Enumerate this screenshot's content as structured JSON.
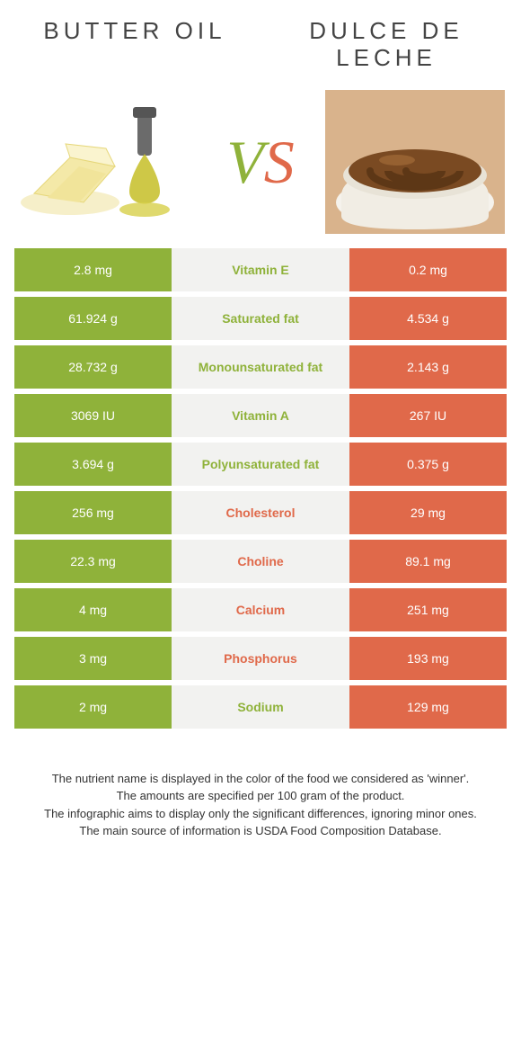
{
  "colors": {
    "green": "#8fb23a",
    "orange": "#e0694a",
    "mid_bg": "#f2f2f0",
    "page_bg": "#ffffff"
  },
  "left": {
    "title": "BUTTER OIL"
  },
  "right": {
    "title": "DULCE DE LECHE"
  },
  "vs": {
    "v": "V",
    "s": "S"
  },
  "rows": [
    {
      "label": "Vitamin E",
      "left": "2.8 mg",
      "right": "0.2 mg",
      "winner": "left"
    },
    {
      "label": "Saturated fat",
      "left": "61.924 g",
      "right": "4.534 g",
      "winner": "left"
    },
    {
      "label": "Monounsaturated fat",
      "left": "28.732 g",
      "right": "2.143 g",
      "winner": "left"
    },
    {
      "label": "Vitamin A",
      "left": "3069 IU",
      "right": "267 IU",
      "winner": "left"
    },
    {
      "label": "Polyunsaturated fat",
      "left": "3.694 g",
      "right": "0.375 g",
      "winner": "left"
    },
    {
      "label": "Cholesterol",
      "left": "256 mg",
      "right": "29 mg",
      "winner": "right"
    },
    {
      "label": "Choline",
      "left": "22.3 mg",
      "right": "89.1 mg",
      "winner": "right"
    },
    {
      "label": "Calcium",
      "left": "4 mg",
      "right": "251 mg",
      "winner": "right"
    },
    {
      "label": "Phosphorus",
      "left": "3 mg",
      "right": "193 mg",
      "winner": "right"
    },
    {
      "label": "Sodium",
      "left": "2 mg",
      "right": "129 mg",
      "winner": "left"
    }
  ],
  "footnotes": [
    "The nutrient name is displayed in the color of the food we considered as 'winner'.",
    "The amounts are specified per 100 gram of the product.",
    "The infographic aims to display only the significant differences, ignoring minor ones.",
    "The main source of information is USDA Food Composition Database."
  ]
}
